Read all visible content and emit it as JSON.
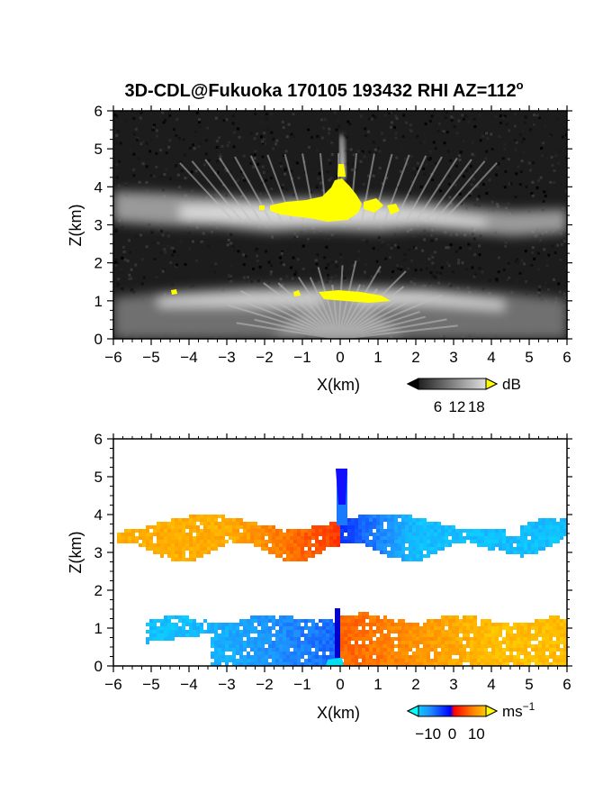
{
  "figure_title": "3D-CDL@Fukuoka 170105 193432 RHI AZ=112",
  "title_degree": "o",
  "chart_data": [
    {
      "type": "heatmap",
      "name": "reflectivity",
      "xlabel": "X(km)",
      "ylabel": "Z(km)",
      "xlim": [
        -6,
        6
      ],
      "ylim": [
        0,
        6
      ],
      "x_ticks": [
        "−6",
        "−5",
        "−4",
        "−3",
        "−2",
        "−1",
        "0",
        "1",
        "2",
        "3",
        "4",
        "5",
        "6"
      ],
      "y_ticks": [
        "0",
        "1",
        "2",
        "3",
        "4",
        "5",
        "6"
      ],
      "colorbar": {
        "unit": "dB",
        "ticks": [
          "6",
          "12",
          "18"
        ],
        "range": [
          0,
          21
        ],
        "colormap": "grayscale, yellow above max"
      },
      "features": [
        {
          "label": "upper layer",
          "z_range": [
            3.2,
            3.9
          ],
          "x_range": [
            -6,
            6
          ]
        },
        {
          "label": "lower layer",
          "z_range": [
            0,
            1.4
          ],
          "x_range": [
            -6,
            6
          ]
        },
        {
          "label": "strong echo core",
          "z_range": [
            3.0,
            4.2
          ],
          "x_range": [
            -2,
            1.5
          ]
        }
      ],
      "colors": {
        "background": "#1c1c1c",
        "saturated": "#ffff00"
      }
    },
    {
      "type": "heatmap",
      "name": "radial velocity",
      "xlabel": "X(km)",
      "ylabel": "Z(km)",
      "xlim": [
        -6,
        6
      ],
      "ylim": [
        0,
        6
      ],
      "x_ticks": [
        "−6",
        "−5",
        "−4",
        "−3",
        "−2",
        "−1",
        "0",
        "1",
        "2",
        "3",
        "4",
        "5",
        "6"
      ],
      "y_ticks": [
        "0",
        "1",
        "2",
        "3",
        "4",
        "5",
        "6"
      ],
      "colorbar": {
        "unit": "ms",
        "unit_exp": "−1",
        "ticks": [
          "−10",
          "0",
          "10"
        ],
        "range": [
          -14,
          14
        ],
        "colormap": "cyan-blue-red-yellow"
      },
      "features": [
        {
          "label": "upper layer",
          "z_range": [
            3.0,
            4.0
          ],
          "x_range": [
            -6,
            6
          ],
          "left_velocity": 8,
          "right_velocity": -8
        },
        {
          "label": "lower layer",
          "z_range": [
            0,
            1.4
          ],
          "x_range": [
            -5,
            6
          ],
          "left_velocity": -7,
          "right_velocity": 9
        }
      ]
    }
  ]
}
